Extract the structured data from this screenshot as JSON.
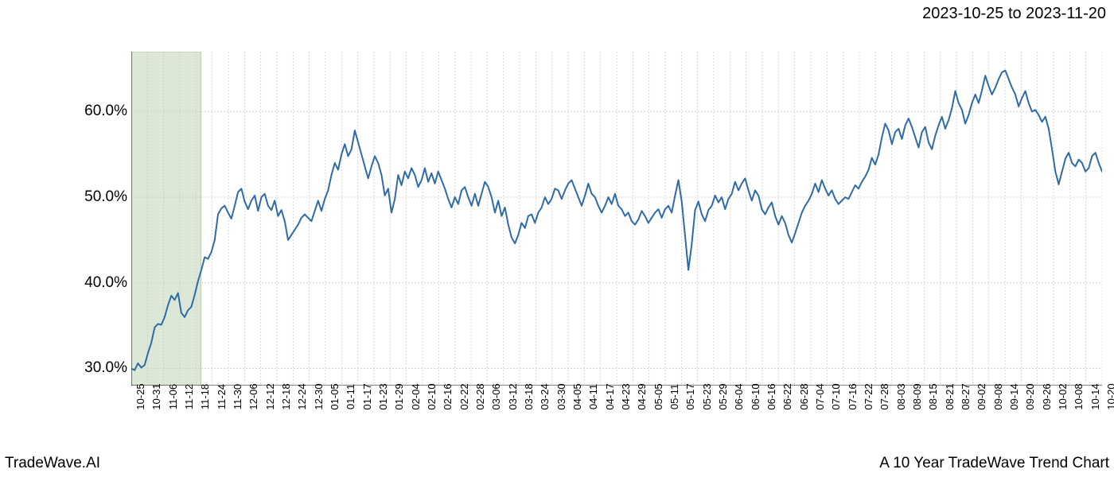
{
  "header": {
    "date_range": "2023-10-25 to 2023-11-20"
  },
  "footer": {
    "left": "TradeWave.AI",
    "right": "A 10 Year TradeWave Trend Chart"
  },
  "chart": {
    "type": "line",
    "background_color": "#ffffff",
    "grid_color": "#cccccc",
    "grid_dash": "2,2",
    "line_color": "#2f6ba8",
    "line_width": 2,
    "highlight_fill": "#dbe8d5",
    "highlight_stroke": "#b8d0a8",
    "highlight_range": [
      "10-25",
      "11-20"
    ],
    "axis_color": "#000000",
    "ylim": [
      28,
      67
    ],
    "yticks": [
      30.0,
      40.0,
      50.0,
      60.0
    ],
    "ytick_labels": [
      "30.0%",
      "40.0%",
      "50.0%",
      "60.0%"
    ],
    "xtick_labels": [
      "10-25",
      "10-31",
      "11-06",
      "11-12",
      "11-18",
      "11-24",
      "11-30",
      "12-06",
      "12-12",
      "12-18",
      "12-24",
      "12-30",
      "01-05",
      "01-11",
      "01-17",
      "01-23",
      "01-29",
      "02-04",
      "02-10",
      "02-16",
      "02-22",
      "02-28",
      "03-06",
      "03-12",
      "03-18",
      "03-24",
      "03-30",
      "04-05",
      "04-11",
      "04-17",
      "04-23",
      "04-29",
      "05-05",
      "05-11",
      "05-17",
      "05-23",
      "05-29",
      "06-04",
      "06-10",
      "06-16",
      "06-22",
      "06-28",
      "07-04",
      "07-10",
      "07-16",
      "07-22",
      "07-28",
      "08-03",
      "08-09",
      "08-15",
      "08-21",
      "08-27",
      "09-02",
      "09-08",
      "09-14",
      "09-20",
      "09-26",
      "10-02",
      "10-08",
      "10-14",
      "10-20"
    ],
    "label_fontsize": 13,
    "ylabel_fontsize": 19,
    "series": [
      30.0,
      29.8,
      30.6,
      30.1,
      30.4,
      31.8,
      33.0,
      34.8,
      35.2,
      35.1,
      36.0,
      37.4,
      38.5,
      38.0,
      38.8,
      36.5,
      36.0,
      36.8,
      37.2,
      38.6,
      40.2,
      41.5,
      43.0,
      42.8,
      43.6,
      45.0,
      48.0,
      48.7,
      49.0,
      48.2,
      47.5,
      49.0,
      50.6,
      51.0,
      49.5,
      48.6,
      49.6,
      50.2,
      48.4,
      50.0,
      50.4,
      49.0,
      48.5,
      49.6,
      47.8,
      48.5,
      47.2,
      45.0,
      45.6,
      46.2,
      46.8,
      47.6,
      48.0,
      47.6,
      47.2,
      48.4,
      49.6,
      48.4,
      49.8,
      50.8,
      52.6,
      54.0,
      53.2,
      55.0,
      56.2,
      54.8,
      55.6,
      57.8,
      56.4,
      55.0,
      53.6,
      52.2,
      53.6,
      54.8,
      54.0,
      52.6,
      50.2,
      51.0,
      48.2,
      49.8,
      52.6,
      51.4,
      53.0,
      52.2,
      53.4,
      52.6,
      51.2,
      52.0,
      53.4,
      51.8,
      52.8,
      51.6,
      53.0,
      52.0,
      51.0,
      49.8,
      48.8,
      50.0,
      49.2,
      50.8,
      51.2,
      50.0,
      49.0,
      50.4,
      49.0,
      50.4,
      51.8,
      51.2,
      50.0,
      48.2,
      49.6,
      47.8,
      48.8,
      46.8,
      45.3,
      44.6,
      45.6,
      47.0,
      46.4,
      47.8,
      48.0,
      47.0,
      48.2,
      48.8,
      50.0,
      49.2,
      49.8,
      51.0,
      50.8,
      49.8,
      50.8,
      51.6,
      52.0,
      51.0,
      50.0,
      49.0,
      50.2,
      51.6,
      50.4,
      50.0,
      49.0,
      48.2,
      49.0,
      50.0,
      49.2,
      50.4,
      49.0,
      48.6,
      47.8,
      48.2,
      47.2,
      46.8,
      47.4,
      48.4,
      47.8,
      47.0,
      47.6,
      48.2,
      48.6,
      47.6,
      48.6,
      49.0,
      48.2,
      50.2,
      52.0,
      49.5,
      45.5,
      41.5,
      44.5,
      48.5,
      49.5,
      48.0,
      47.2,
      48.5,
      49.0,
      50.2,
      49.4,
      50.0,
      48.6,
      49.8,
      50.4,
      51.8,
      50.8,
      51.6,
      52.2,
      50.8,
      49.6,
      50.8,
      50.2,
      48.6,
      48.0,
      48.8,
      49.4,
      47.8,
      46.8,
      47.8,
      47.0,
      45.6,
      44.7,
      45.8,
      47.0,
      48.2,
      49.0,
      49.6,
      50.4,
      51.6,
      50.6,
      52.0,
      51.0,
      50.2,
      50.8,
      49.8,
      49.2,
      49.6,
      50.0,
      49.8,
      50.6,
      51.4,
      51.0,
      51.8,
      52.4,
      53.2,
      54.6,
      53.8,
      55.0,
      57.0,
      58.6,
      57.8,
      56.2,
      57.6,
      58.0,
      56.8,
      58.4,
      59.2,
      58.2,
      57.0,
      55.8,
      57.6,
      58.2,
      56.4,
      55.6,
      57.2,
      58.4,
      59.4,
      58.0,
      59.0,
      60.4,
      62.4,
      61.0,
      60.2,
      58.6,
      59.6,
      61.0,
      62.0,
      61.0,
      62.5,
      64.2,
      63.0,
      62.0,
      62.8,
      63.8,
      64.6,
      64.8,
      63.8,
      62.8,
      62.0,
      60.6,
      61.6,
      62.4,
      61.0,
      60.0,
      60.2,
      59.6,
      58.8,
      59.4,
      58.0,
      55.6,
      53.0,
      51.5,
      53.0,
      54.5,
      55.2,
      54.0,
      53.6,
      54.4,
      54.0,
      53.0,
      53.4,
      54.8,
      55.2,
      54.0,
      53.0
    ]
  }
}
